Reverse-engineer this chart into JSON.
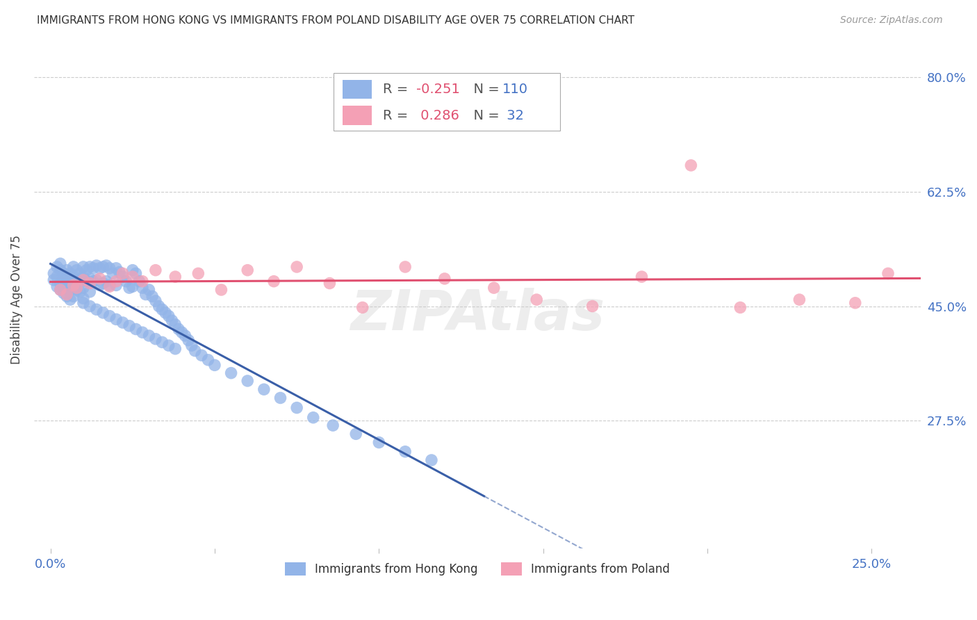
{
  "title": "IMMIGRANTS FROM HONG KONG VS IMMIGRANTS FROM POLAND DISABILITY AGE OVER 75 CORRELATION CHART",
  "source": "Source: ZipAtlas.com",
  "ylabel": "Disability Age Over 75",
  "ylim": [
    0.08,
    0.84
  ],
  "xlim": [
    -0.005,
    0.265
  ],
  "hk_color": "#92b4e8",
  "poland_color": "#f4a0b5",
  "hk_line_color": "#3a5fa8",
  "poland_line_color": "#e05070",
  "hk_R": -0.251,
  "hk_N": 110,
  "poland_R": 0.286,
  "poland_N": 32,
  "legend_label_hk": "Immigrants from Hong Kong",
  "legend_label_poland": "Immigrants from Poland",
  "background_color": "#ffffff",
  "grid_color": "#cccccc",
  "axis_label_color": "#4472c4",
  "watermark": "ZIPAtlas",
  "hk_line_x0": 0.0,
  "hk_line_y0": 0.484,
  "hk_line_x1": 0.132,
  "hk_line_y1": 0.4,
  "hk_line_xend": 0.265,
  "hk_line_yend": 0.316,
  "poland_line_x0": 0.0,
  "poland_line_y0": 0.444,
  "poland_line_x1": 0.265,
  "poland_line_y1": 0.5
}
